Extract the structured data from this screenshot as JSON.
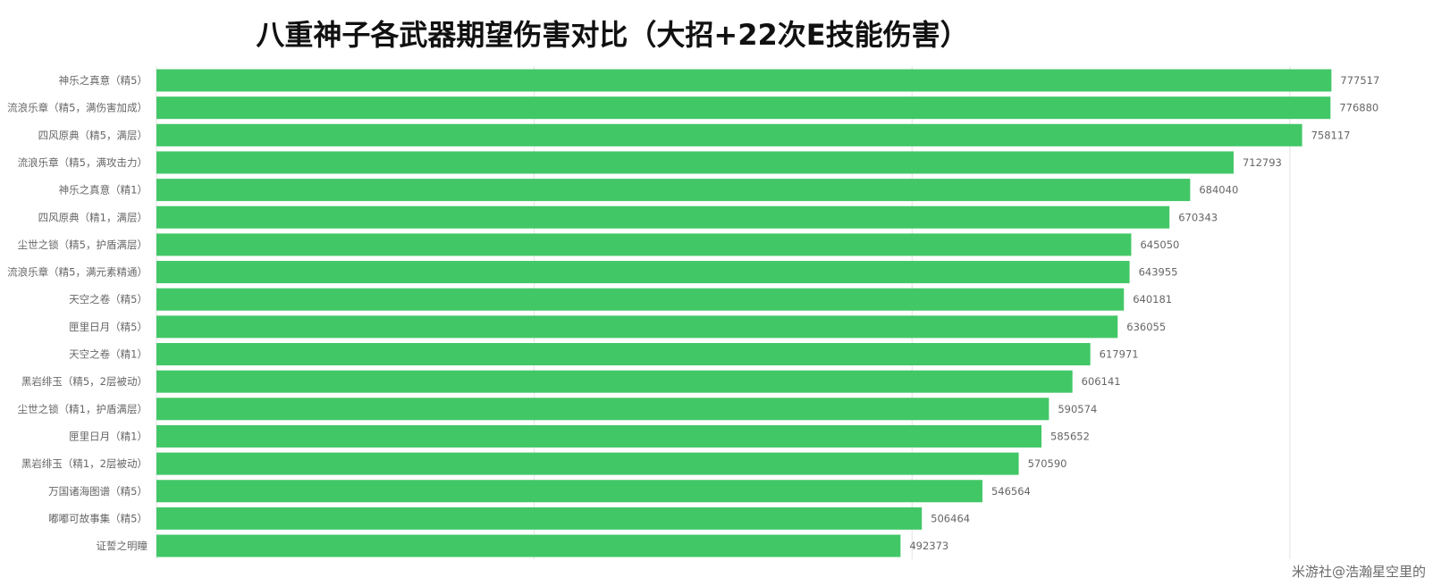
{
  "chart_data": {
    "type": "bar",
    "orientation": "horizontal",
    "title": "八重神子各武器期望伤害对比（大招+22次E技能伤害）",
    "categories": [
      "神乐之真意（精5）",
      "流浪乐章（精5，满伤害加成）",
      "四风原典（精5，满层）",
      "流浪乐章（精5，满攻击力）",
      "神乐之真意（精1）",
      "四风原典（精1，满层）",
      "尘世之锁（精5，护盾满层）",
      "流浪乐章（精5，满元素精通）",
      "天空之卷（精5）",
      "匣里日月（精5）",
      "天空之卷（精1）",
      "黑岩绯玉（精5，2层被动）",
      "尘世之锁（精1，护盾满层）",
      "匣里日月（精1）",
      "黑岩绯玉（精1，2层被动）",
      "万国诸海图谱（精5）",
      "嘟嘟可故事集（精5）",
      "证誓之明瞳"
    ],
    "values": [
      777517,
      776880,
      758117,
      712793,
      684040,
      670343,
      645050,
      643955,
      640181,
      636055,
      617971,
      606141,
      590574,
      585652,
      570590,
      546564,
      506464,
      492373
    ],
    "xlim": [
      0,
      900000
    ],
    "grid": true,
    "bar_color": "#42c767",
    "data_labels": true
  },
  "watermark": "米游社@浩瀚星空里的"
}
